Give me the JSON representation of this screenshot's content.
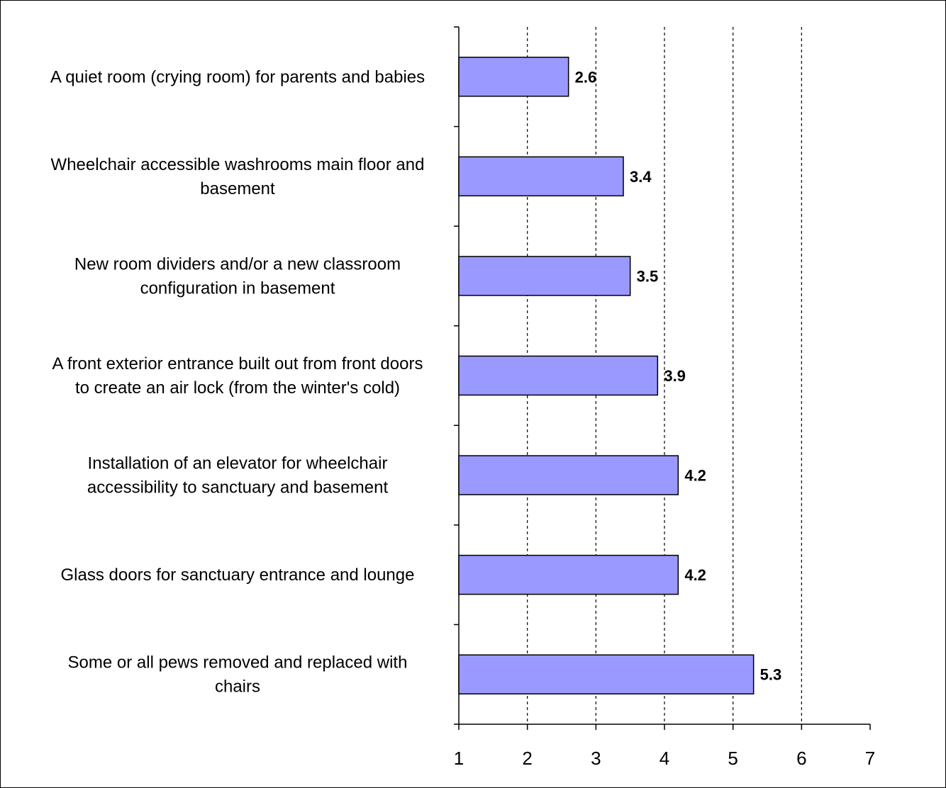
{
  "chart_data": {
    "type": "bar",
    "orientation": "horizontal",
    "categories": [
      [
        "A quiet room (crying room) for parents and babies"
      ],
      [
        "Wheelchair accessible washrooms main floor and",
        "basement"
      ],
      [
        "New room dividers and/or a new classroom",
        "configuration in basement"
      ],
      [
        "A front exterior entrance built out from front doors",
        "to create an air lock (from the winter's cold)"
      ],
      [
        "Installation of an elevator for wheelchair",
        "accessibility to sanctuary and basement"
      ],
      [
        "Glass doors for sanctuary entrance and lounge"
      ],
      [
        "Some or all pews removed and replaced with",
        "chairs"
      ]
    ],
    "values": [
      2.6,
      3.4,
      3.5,
      3.9,
      4.2,
      4.2,
      5.3
    ],
    "data_labels": [
      "2.6",
      "3.4",
      "3.5",
      "3.9",
      "4.2",
      "4.2",
      "5.3"
    ],
    "xlim": [
      1,
      7
    ],
    "xticks": [
      "1",
      "2",
      "3",
      "4",
      "5",
      "6",
      "7"
    ],
    "grid": "vertical dashed",
    "bar_color": "#9999ff",
    "bar_edge_color": "#000000",
    "title": "",
    "xlabel": "",
    "ylabel": ""
  }
}
